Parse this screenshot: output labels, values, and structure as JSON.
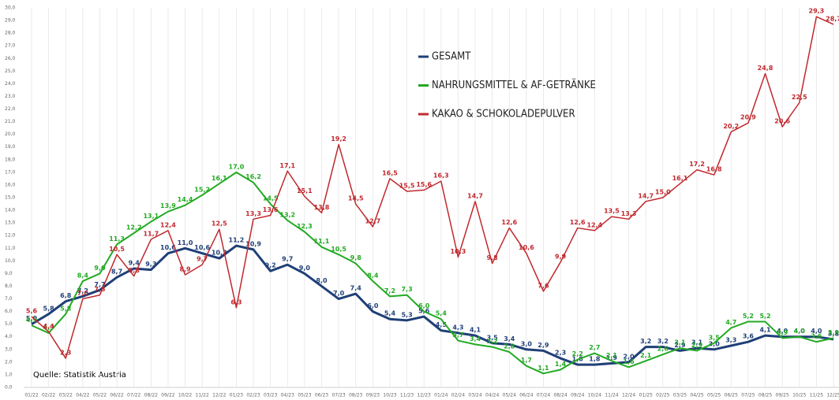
{
  "chart_data": {
    "type": "line",
    "categories": [
      "01/22",
      "02/22",
      "03/22",
      "04/22",
      "05/22",
      "06/22",
      "07/22",
      "08/22",
      "09/22",
      "10/22",
      "11/22",
      "12/22",
      "01/23",
      "02/23",
      "03/23",
      "04/23",
      "05/23",
      "06/23",
      "07/23",
      "08/23",
      "09/23",
      "10/23",
      "11/23",
      "12/23",
      "01/24",
      "02/24",
      "03/24",
      "04/24",
      "05/24",
      "06/24",
      "07/24",
      "08/24",
      "09/24",
      "10/24",
      "11/24",
      "12/24",
      "01/25",
      "02/25",
      "03/25",
      "04/25",
      "05/25",
      "06/25",
      "07/25",
      "08/25",
      "09/25",
      "10/25",
      "11/25",
      "12/25"
    ],
    "series": [
      {
        "name": "GESAMT",
        "color": "#1f3f77",
        "width": 3,
        "values": [
          5.0,
          5.8,
          6.8,
          7.2,
          7.7,
          8.7,
          9.4,
          9.3,
          10.6,
          11.0,
          10.6,
          10.2,
          11.2,
          10.9,
          9.2,
          9.7,
          9.0,
          8.0,
          7.0,
          7.4,
          6.0,
          5.4,
          5.3,
          5.6,
          4.5,
          4.3,
          4.1,
          3.5,
          3.4,
          3.0,
          2.9,
          2.3,
          1.8,
          1.8,
          1.9,
          2.0,
          3.2,
          3.2,
          2.9,
          3.1,
          3.0,
          3.3,
          3.6,
          4.1,
          4.0,
          4.0,
          4.0,
          3.8
        ],
        "value_labels": [
          "5,0",
          "5,8",
          "6,8",
          "7,2",
          "7,7",
          "8,7",
          "9,4",
          "9,3",
          "10,6",
          "11,0",
          "10,6",
          "10,2",
          "11,2",
          "10,9",
          "9,2",
          "9,7",
          "9,0",
          "8,0",
          "7,0",
          "7,4",
          "6,0",
          "5,4",
          "5,3",
          "5,6",
          "4,5",
          "4,3",
          "4,1",
          "3,5",
          "3,4",
          "3,0",
          "2,9",
          "2,3",
          "1,8",
          "1,8",
          "1,9",
          "2,0",
          "3,2",
          "3,2",
          "2,9",
          "3,1",
          "3,0",
          "3,3",
          "3,6",
          "4,1",
          "4,0",
          "4,0",
          "4,0",
          "3,8"
        ]
      },
      {
        "name": "NAHRUNGSMITTEL & AF-GETRÄNKE",
        "color": "#22aa22",
        "width": 2,
        "values": [
          4.9,
          4.3,
          5.8,
          8.4,
          9.0,
          11.3,
          12.2,
          13.1,
          13.9,
          14.4,
          15.2,
          16.1,
          17.0,
          16.2,
          14.5,
          13.2,
          12.3,
          11.1,
          10.5,
          9.8,
          8.4,
          7.2,
          7.3,
          6.0,
          5.4,
          3.7,
          3.4,
          3.2,
          2.8,
          1.7,
          1.1,
          1.4,
          2.2,
          2.7,
          2.1,
          1.6,
          2.1,
          2.6,
          3.1,
          2.9,
          3.5,
          4.7,
          5.2,
          5.2,
          3.9,
          4.0,
          3.6,
          3.9
        ],
        "value_labels": [
          "4,9",
          "4,3",
          "5,8",
          "8,4",
          "9,0",
          "11,3",
          "12,2",
          "13,1",
          "13,9",
          "14,4",
          "15,2",
          "16,1",
          "17,0",
          "16,2",
          "14,5",
          "13,2",
          "12,3",
          "11,1",
          "10,5",
          "9,8",
          "8,4",
          "7,2",
          "7,3",
          "6,0",
          "5,4",
          "3,7",
          "3,4",
          "3,2",
          "2,8",
          "1,7",
          "1,1",
          "1,4",
          "2,2",
          "2,7",
          "2,1",
          "1,6",
          "2,1",
          "2,6",
          "3,1",
          "2,9",
          "3,5",
          "4,7",
          "5,2",
          "5,2",
          "3,9",
          "4,0",
          "3,6",
          "3,9"
        ]
      },
      {
        "name": "KAKAO & SCHOKOLADEPULVER",
        "color": "#c0282d",
        "width": 1.5,
        "values": [
          5.6,
          4.4,
          2.3,
          7.0,
          7.3,
          10.5,
          8.8,
          11.7,
          12.4,
          8.9,
          9.7,
          12.5,
          6.3,
          13.3,
          13.6,
          17.1,
          15.1,
          13.8,
          19.2,
          14.5,
          12.7,
          16.5,
          15.5,
          15.6,
          16.3,
          10.3,
          14.7,
          9.8,
          12.6,
          10.6,
          7.6,
          9.9,
          12.6,
          12.4,
          13.5,
          13.3,
          14.7,
          15.0,
          16.1,
          17.2,
          16.8,
          20.2,
          20.9,
          24.8,
          20.6,
          22.5,
          29.3,
          28.7
        ],
        "value_labels": [
          "5,6",
          "4,4",
          "2,3",
          "7,0",
          "7,3",
          "10,5",
          "8,8",
          "11,7",
          "12,4",
          "8,9",
          "9,7",
          "12,5",
          "6,3",
          "13,3",
          "13,6",
          "17,1",
          "15,1",
          "13,8",
          "19,2",
          "14,5",
          "12,7",
          "16,5",
          "15,5",
          "15,6",
          "16,3",
          "10,3",
          "14,7",
          "9,8",
          "12,6",
          "10,6",
          "7,6",
          "9,9",
          "12,6",
          "12,4",
          "13,5",
          "13,3",
          "14,7",
          "15,0",
          "16,1",
          "17,2",
          "16,8",
          "20,2",
          "20,9",
          "24,8",
          "20,6",
          "22,5",
          "29,3",
          "28,7"
        ]
      }
    ],
    "ylim": [
      0,
      30
    ],
    "yticks": [
      {
        "value": 0,
        "label": "0,0"
      },
      {
        "value": 1,
        "label": "1,0"
      },
      {
        "value": 2,
        "label": "2,0"
      },
      {
        "value": 3,
        "label": "3,0"
      },
      {
        "value": 4,
        "label": "4,0"
      },
      {
        "value": 5,
        "label": "5,0"
      },
      {
        "value": 6,
        "label": "6,0"
      },
      {
        "value": 7,
        "label": "7,0"
      },
      {
        "value": 8,
        "label": "8,0"
      },
      {
        "value": 9,
        "label": "9,0"
      },
      {
        "value": 10,
        "label": "10,0"
      },
      {
        "value": 11,
        "label": "11,0"
      },
      {
        "value": 12,
        "label": "12,0"
      },
      {
        "value": 13,
        "label": "13,0"
      },
      {
        "value": 14,
        "label": "14,0"
      },
      {
        "value": 15,
        "label": "15,0"
      },
      {
        "value": 16,
        "label": "16,0"
      },
      {
        "value": 17,
        "label": "17,0"
      },
      {
        "value": 18,
        "label": "18,0"
      },
      {
        "value": 19,
        "label": "19,0"
      },
      {
        "value": 20,
        "label": "20,0"
      },
      {
        "value": 21,
        "label": "21,0"
      },
      {
        "value": 22,
        "label": "22,0"
      },
      {
        "value": 23,
        "label": "23,0"
      },
      {
        "value": 24,
        "label": "24,0"
      },
      {
        "value": 25,
        "label": "25,0"
      },
      {
        "value": 26,
        "label": "26,0"
      },
      {
        "value": 27,
        "label": "27,0"
      },
      {
        "value": 28,
        "label": "28,0"
      },
      {
        "value": 29,
        "label": "29,0"
      },
      {
        "value": 30,
        "label": "30,0"
      }
    ],
    "grid": true,
    "annotation": "Quelle: Statistik Austria"
  }
}
